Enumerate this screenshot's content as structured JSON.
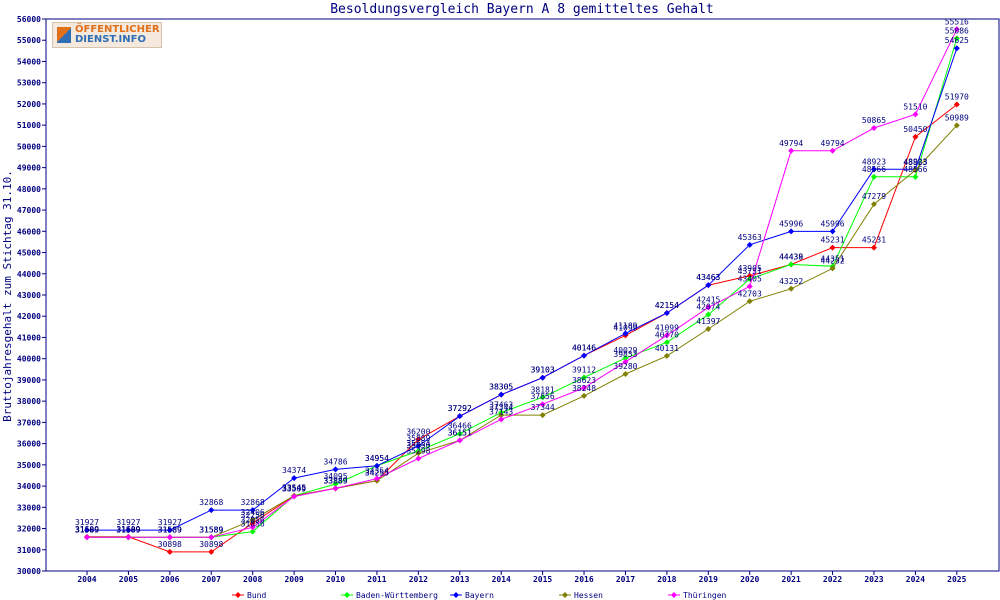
{
  "logo": {
    "line1": "ÖFFENTLICHER",
    "line2": "DIENST.INFO"
  },
  "chart_data": {
    "type": "line",
    "title": "Besoldungsvergleich Bayern A 8 gemitteltes Gehalt",
    "ylabel": "Bruttojahresgehalt zum Stichtag 31.10.",
    "xlabel": "",
    "ylim": [
      30000,
      56000
    ],
    "yticks": [
      30000,
      31000,
      32000,
      33000,
      34000,
      35000,
      36000,
      37000,
      38000,
      39000,
      40000,
      41000,
      42000,
      43000,
      44000,
      45000,
      46000,
      47000,
      48000,
      49000,
      50000,
      51000,
      52000,
      53000,
      54000,
      55000,
      56000
    ],
    "categories": [
      "2004",
      "2005",
      "2006",
      "2007",
      "2008",
      "2009",
      "2010",
      "2011",
      "2012",
      "2013",
      "2014",
      "2015",
      "2016",
      "2017",
      "2018",
      "2019",
      "2020",
      "2021",
      "2022",
      "2023",
      "2024",
      "2025"
    ],
    "grid": false,
    "legend": "bottom",
    "series": [
      {
        "name": "Bund",
        "color": "#ff0000",
        "values": [
          31609,
          31609,
          30898,
          30898,
          32256,
          33545,
          33889,
          34255,
          36200,
          37292,
          38305,
          39103,
          40146,
          41099,
          42154,
          43463,
          43905,
          44438,
          45231,
          45231,
          50450,
          51970
        ]
      },
      {
        "name": "Baden-Württemberg",
        "color": "#00ff00",
        "values": [
          31589,
          31589,
          31589,
          31589,
          31856,
          33545,
          34095,
          34954,
          35654,
          36466,
          37463,
          38181,
          39112,
          40029,
          40770,
          42074,
          43751,
          44439,
          44351,
          48566,
          48566,
          55086
        ]
      },
      {
        "name": "Bayern",
        "color": "#0000ff",
        "values": [
          31927,
          31927,
          31927,
          32868,
          32868,
          34374,
          34786,
          34954,
          35889,
          37292,
          38305,
          39103,
          40146,
          41189,
          42154,
          43463,
          45363,
          45996,
          45996,
          48923,
          48923,
          54625
        ]
      },
      {
        "name": "Hessen",
        "color": "#808000",
        "values": [
          31589,
          31589,
          31589,
          31589,
          32406,
          33545,
          33889,
          34255,
          35550,
          36151,
          37344,
          37344,
          38248,
          39280,
          40131,
          41397,
          42703,
          43292,
          44252,
          47279,
          48883,
          50989
        ]
      },
      {
        "name": "Thüringen",
        "color": "#ff00ff",
        "values": [
          31589,
          31589,
          31589,
          31589,
          32056,
          33509,
          33889,
          34354,
          35298,
          36151,
          37143,
          37856,
          38623,
          39853,
          41099,
          42415,
          43405,
          49794,
          49794,
          50865,
          51510,
          55516
        ]
      }
    ]
  }
}
